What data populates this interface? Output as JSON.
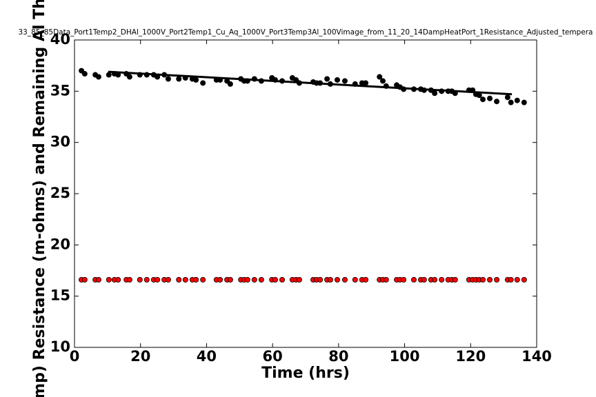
{
  "chart_data": {
    "type": "scatter",
    "title": "33_85_85Data_Port1Temp2_DHAl_1000V_Port2Temp1_Cu_Aq_1000V_Port3Temp3Al_100Vimage_from_11_20_14DampHeatPort_1Resistance_Adjusted_tempera",
    "x_label": "Time (hrs)",
    "y_label": "mp) Resistance (m-ohms) and Remaining Al Th",
    "xlim": [
      0,
      140
    ],
    "xticks": [
      0,
      20,
      40,
      60,
      80,
      100,
      120,
      140
    ],
    "ylim": [
      10,
      40
    ],
    "yticks": [
      10,
      15,
      20,
      25,
      30,
      35,
      40
    ],
    "x": [
      2.1,
      3.1,
      6.3,
      7.3,
      10.4,
      12.1,
      13.2,
      15.7,
      16.7,
      19.8,
      21.9,
      24.0,
      25.1,
      27.2,
      28.4,
      31.6,
      33.6,
      35.7,
      36.8,
      38.9,
      43.0,
      44.1,
      46.2,
      47.2,
      50.4,
      51.4,
      52.4,
      54.5,
      56.6,
      59.8,
      60.8,
      62.9,
      66.0,
      67.1,
      68.1,
      72.3,
      73.3,
      74.4,
      76.5,
      77.5,
      79.6,
      81.9,
      85.0,
      87.1,
      88.2,
      92.4,
      93.4,
      94.4,
      97.6,
      98.6,
      99.7,
      102.8,
      104.9,
      105.9,
      108.0,
      109.1,
      111.2,
      113.2,
      114.3,
      115.3,
      119.5,
      120.6,
      121.6,
      122.6,
      123.7,
      125.8,
      127.9,
      131.2,
      132.2,
      134.1,
      136.2
    ],
    "series": [
      {
        "color": "#000000",
        "values": [
          37.0,
          36.7,
          36.6,
          36.4,
          36.6,
          36.7,
          36.6,
          36.7,
          36.4,
          36.6,
          36.6,
          36.6,
          36.4,
          36.6,
          36.2,
          36.2,
          36.3,
          36.2,
          36.1,
          35.8,
          36.1,
          36.1,
          36.0,
          35.7,
          36.2,
          36.0,
          36.0,
          36.2,
          36.0,
          36.3,
          36.1,
          36.0,
          36.3,
          36.1,
          35.8,
          35.9,
          35.8,
          35.8,
          36.2,
          35.7,
          36.1,
          36.0,
          35.7,
          35.8,
          35.8,
          36.4,
          36.0,
          35.5,
          35.6,
          35.4,
          35.2,
          35.2,
          35.2,
          35.1,
          35.1,
          34.8,
          35.0,
          35.0,
          35.0,
          34.8,
          35.1,
          35.1,
          34.7,
          34.6,
          34.2,
          34.3,
          34.0,
          34.4,
          33.9,
          34.1,
          33.9
        ]
      },
      {
        "color": "#ff0000",
        "values": [
          16.6,
          16.6,
          16.6,
          16.6,
          16.6,
          16.6,
          16.6,
          16.6,
          16.6,
          16.6,
          16.6,
          16.6,
          16.6,
          16.6,
          16.6,
          16.6,
          16.6,
          16.6,
          16.6,
          16.6,
          16.6,
          16.6,
          16.6,
          16.6,
          16.6,
          16.6,
          16.6,
          16.6,
          16.6,
          16.6,
          16.6,
          16.6,
          16.6,
          16.6,
          16.6,
          16.6,
          16.6,
          16.6,
          16.6,
          16.6,
          16.6,
          16.6,
          16.6,
          16.6,
          16.6,
          16.6,
          16.6,
          16.6,
          16.6,
          16.6,
          16.6,
          16.6,
          16.6,
          16.6,
          16.6,
          16.6,
          16.6,
          16.6,
          16.6,
          16.6,
          16.6,
          16.6,
          16.6,
          16.6,
          16.6,
          16.6,
          16.6,
          16.6,
          16.6,
          16.6,
          16.6
        ]
      }
    ],
    "trendline": {
      "color": "#000000",
      "x": [
        10.2,
        132.5
      ],
      "values": [
        36.9,
        34.7
      ]
    }
  }
}
